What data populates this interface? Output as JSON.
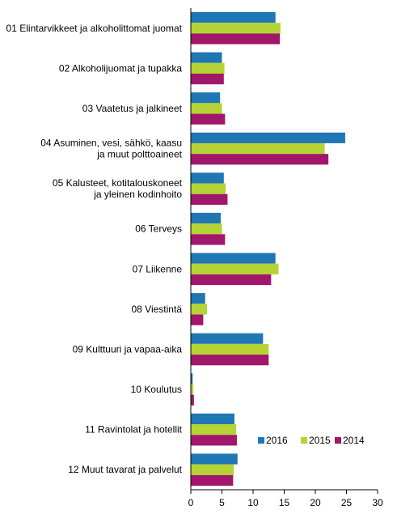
{
  "chart_data": {
    "type": "bar",
    "orientation": "horizontal",
    "categories": [
      [
        "01 Elintarvikkeet ja alkoholittomat juomat"
      ],
      [
        "02 Alkoholijuomat ja tupakka"
      ],
      [
        "03 Vaatetus ja jalkineet"
      ],
      [
        "04 Asuminen, vesi, sähkö, kaasu",
        "ja muut polttoaineet"
      ],
      [
        "05 Kalusteet, kotitalouskoneet",
        "ja yleinen kodinhoito"
      ],
      [
        "06 Terveys"
      ],
      [
        "07 Liikenne"
      ],
      [
        "08 Viestintä"
      ],
      [
        "09 Kulttuuri ja vapaa-aika"
      ],
      [
        "10 Koulutus"
      ],
      [
        "11 Ravintolat ja hotellit"
      ],
      [
        "12 Muut tavarat ja palvelut"
      ]
    ],
    "series": [
      {
        "name": "2016",
        "color": "#1f77b4",
        "values": [
          13.6,
          5.0,
          4.7,
          24.8,
          5.3,
          4.8,
          13.6,
          2.3,
          11.6,
          0.3,
          7.0,
          7.5
        ]
      },
      {
        "name": "2015",
        "color": "#b5d334",
        "values": [
          14.4,
          5.4,
          5.0,
          21.5,
          5.6,
          5.0,
          14.1,
          2.6,
          12.5,
          0.4,
          7.3,
          6.9
        ]
      },
      {
        "name": "2014",
        "color": "#a0176b",
        "values": [
          14.3,
          5.3,
          5.5,
          22.1,
          5.9,
          5.5,
          12.9,
          2.0,
          12.5,
          0.5,
          7.4,
          6.8
        ]
      }
    ],
    "xlim": [
      0,
      30
    ],
    "xticks": [
      "0",
      "5",
      "10",
      "15",
      "20",
      "25",
      "30"
    ],
    "legend_position": "bottom-right",
    "grid": false
  }
}
